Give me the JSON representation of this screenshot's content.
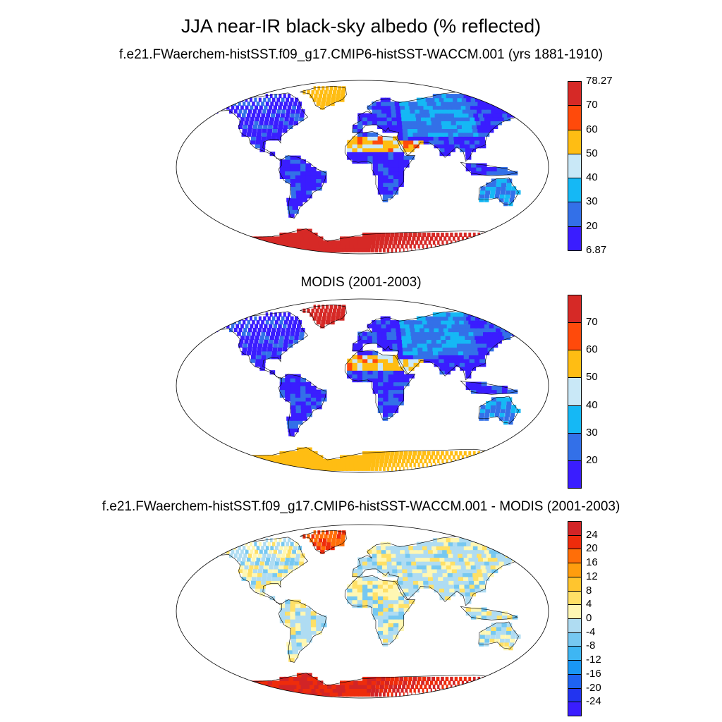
{
  "title": "JJA near-IR black-sky albedo (% reflected)",
  "panels": [
    {
      "title": "f.e21.FWaerchem-histSST.f09_g17.CMIP6-histSST-WACCM.001 (yrs 1881-1910)",
      "kind": "model",
      "colorbar": {
        "colors": [
          "#3a1dff",
          "#3370e8",
          "#15b8f5",
          "#c9e8f7",
          "#ffbd13",
          "#ff4a0b",
          "#d62926"
        ],
        "labels": [
          "6.87",
          "20",
          "30",
          "40",
          "50",
          "60",
          "70",
          "78.27"
        ]
      }
    },
    {
      "title": "MODIS (2001-2003)",
      "kind": "obs",
      "colorbar": {
        "colors": [
          "#3a1dff",
          "#3370e8",
          "#15b8f5",
          "#c9e8f7",
          "#ffbd13",
          "#ff4a0b",
          "#d62926"
        ],
        "labels": [
          "",
          "20",
          "30",
          "40",
          "50",
          "60",
          "70",
          ""
        ]
      }
    },
    {
      "title": "f.e21.FWaerchem-histSST.f09_g17.CMIP6-histSST-WACCM.001 - MODIS (2001-2003)",
      "kind": "diff",
      "colorbar": {
        "colors": [
          "#3a1dff",
          "#2234f0",
          "#1e63f2",
          "#1997f5",
          "#3eb6f3",
          "#76c8f1",
          "#afdcf2",
          "#fff7b3",
          "#ffe066",
          "#ffc52e",
          "#ff9d0e",
          "#ff6e08",
          "#ee2c0b",
          "#d22426"
        ],
        "labels": [
          "",
          "-24",
          "-20",
          "-16",
          "-12",
          "-8",
          "-4",
          "0",
          "4",
          "8",
          "12",
          "16",
          "20",
          "24",
          ""
        ]
      }
    }
  ]
}
